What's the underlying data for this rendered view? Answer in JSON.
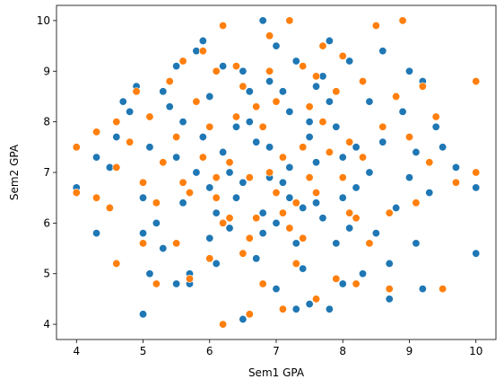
{
  "chart_data": {
    "type": "scatter",
    "xlabel": "Sem1 GPA",
    "ylabel": "Sem2 GPA",
    "xlim": [
      3.7,
      10.3
    ],
    "ylim": [
      3.7,
      10.3
    ],
    "xticks": [
      "4",
      "5",
      "6",
      "7",
      "8",
      "9",
      "10"
    ],
    "yticks": [
      "4",
      "5",
      "6",
      "7",
      "8",
      "9",
      "10"
    ],
    "grid": false,
    "legend": "none",
    "series": [
      {
        "color": "#1f77b4",
        "points": [
          [
            4.0,
            6.6
          ],
          [
            4.0,
            6.7
          ],
          [
            4.3,
            7.3
          ],
          [
            4.3,
            5.8
          ],
          [
            4.5,
            7.1
          ],
          [
            4.6,
            7.7
          ],
          [
            4.7,
            8.4
          ],
          [
            4.8,
            8.2
          ],
          [
            4.9,
            8.7
          ],
          [
            5.0,
            4.2
          ],
          [
            5.0,
            5.8
          ],
          [
            5.0,
            6.5
          ],
          [
            5.1,
            7.5
          ],
          [
            5.1,
            5.0
          ],
          [
            5.2,
            6.0
          ],
          [
            5.3,
            5.5
          ],
          [
            5.3,
            8.6
          ],
          [
            5.4,
            8.3
          ],
          [
            5.5,
            4.8
          ],
          [
            5.5,
            9.1
          ],
          [
            5.6,
            8.0
          ],
          [
            5.7,
            5.0
          ],
          [
            5.7,
            4.8
          ],
          [
            5.8,
            9.4
          ],
          [
            5.9,
            9.6
          ],
          [
            6.0,
            8.5
          ],
          [
            6.0,
            5.7
          ],
          [
            6.1,
            5.2
          ],
          [
            6.2,
            9.1
          ],
          [
            6.3,
            7.0
          ],
          [
            6.4,
            6.5
          ],
          [
            6.5,
            4.1
          ],
          [
            6.5,
            9.0
          ],
          [
            6.6,
            8.0
          ],
          [
            6.7,
            5.3
          ],
          [
            6.8,
            10.0
          ],
          [
            6.8,
            6.2
          ],
          [
            6.9,
            7.5
          ],
          [
            7.0,
            4.7
          ],
          [
            7.0,
            9.5
          ],
          [
            7.1,
            6.8
          ],
          [
            7.2,
            8.2
          ],
          [
            7.3,
            4.3
          ],
          [
            7.3,
            9.2
          ],
          [
            7.4,
            5.1
          ],
          [
            7.5,
            7.7
          ],
          [
            7.5,
            4.4
          ],
          [
            7.6,
            6.4
          ],
          [
            7.7,
            8.9
          ],
          [
            7.8,
            4.3
          ],
          [
            7.8,
            9.6
          ],
          [
            7.9,
            5.6
          ],
          [
            8.0,
            7.3
          ],
          [
            8.0,
            4.8
          ],
          [
            8.1,
            9.2
          ],
          [
            8.2,
            6.7
          ],
          [
            8.3,
            5.0
          ],
          [
            8.4,
            8.4
          ],
          [
            8.5,
            5.8
          ],
          [
            8.6,
            9.4
          ],
          [
            8.6,
            7.6
          ],
          [
            8.7,
            5.2
          ],
          [
            8.7,
            4.5
          ],
          [
            8.8,
            6.3
          ],
          [
            8.9,
            8.2
          ],
          [
            9.0,
            6.9
          ],
          [
            9.0,
            9.0
          ],
          [
            9.1,
            5.6
          ],
          [
            9.1,
            7.4
          ],
          [
            9.2,
            4.7
          ],
          [
            9.2,
            8.8
          ],
          [
            9.3,
            6.6
          ],
          [
            9.4,
            7.9
          ],
          [
            9.5,
            7.5
          ],
          [
            9.7,
            7.1
          ],
          [
            10.0,
            6.7
          ],
          [
            10.0,
            5.4
          ],
          [
            6.9,
            6.9
          ],
          [
            7.2,
            7.1
          ],
          [
            6.5,
            6.8
          ],
          [
            7.6,
            7.2
          ],
          [
            6.7,
            7.6
          ],
          [
            7.4,
            6.3
          ],
          [
            6.2,
            7.4
          ],
          [
            7.9,
            7.9
          ],
          [
            6.8,
            5.8
          ],
          [
            7.1,
            8.6
          ],
          [
            6.4,
            7.9
          ],
          [
            7.7,
            6.1
          ],
          [
            6.1,
            6.2
          ],
          [
            8.2,
            7.5
          ],
          [
            5.8,
            7.0
          ],
          [
            7.0,
            6.0
          ],
          [
            6.6,
            8.6
          ],
          [
            7.5,
            8.0
          ],
          [
            8.0,
            6.5
          ],
          [
            5.9,
            7.7
          ],
          [
            6.3,
            5.9
          ],
          [
            7.3,
            5.6
          ],
          [
            8.4,
            7.0
          ],
          [
            5.6,
            6.4
          ],
          [
            7.8,
            8.4
          ],
          [
            6.9,
            8.8
          ],
          [
            6.0,
            6.7
          ],
          [
            7.2,
            6.5
          ],
          [
            8.1,
            5.9
          ],
          [
            5.5,
            7.3
          ],
          [
            7.6,
            8.7
          ]
        ]
      },
      {
        "color": "#ff7f0e",
        "points": [
          [
            4.0,
            7.5
          ],
          [
            4.0,
            6.6
          ],
          [
            4.3,
            7.8
          ],
          [
            4.3,
            6.5
          ],
          [
            4.5,
            6.3
          ],
          [
            4.6,
            8.0
          ],
          [
            4.6,
            7.1
          ],
          [
            4.6,
            5.2
          ],
          [
            4.8,
            7.6
          ],
          [
            4.9,
            8.6
          ],
          [
            5.0,
            6.8
          ],
          [
            5.0,
            5.6
          ],
          [
            5.1,
            8.1
          ],
          [
            5.2,
            6.4
          ],
          [
            5.2,
            4.8
          ],
          [
            5.3,
            7.2
          ],
          [
            5.4,
            8.8
          ],
          [
            5.5,
            5.6
          ],
          [
            5.6,
            9.2
          ],
          [
            5.6,
            6.8
          ],
          [
            5.7,
            4.9
          ],
          [
            5.8,
            8.4
          ],
          [
            5.9,
            9.4
          ],
          [
            6.0,
            5.3
          ],
          [
            6.1,
            9.0
          ],
          [
            6.2,
            9.9
          ],
          [
            6.2,
            4.0
          ],
          [
            6.3,
            6.1
          ],
          [
            6.4,
            9.1
          ],
          [
            6.5,
            5.4
          ],
          [
            6.6,
            4.2
          ],
          [
            6.7,
            8.3
          ],
          [
            6.8,
            4.8
          ],
          [
            6.9,
            9.7
          ],
          [
            7.0,
            6.6
          ],
          [
            7.1,
            4.3
          ],
          [
            7.2,
            10.0
          ],
          [
            7.3,
            5.2
          ],
          [
            7.4,
            9.1
          ],
          [
            7.5,
            6.9
          ],
          [
            7.6,
            4.5
          ],
          [
            7.7,
            9.5
          ],
          [
            7.8,
            7.4
          ],
          [
            7.9,
            4.9
          ],
          [
            8.0,
            9.3
          ],
          [
            8.1,
            6.2
          ],
          [
            8.2,
            4.8
          ],
          [
            8.3,
            8.8
          ],
          [
            8.4,
            5.6
          ],
          [
            8.5,
            9.9
          ],
          [
            8.6,
            7.9
          ],
          [
            8.7,
            6.2
          ],
          [
            8.7,
            4.7
          ],
          [
            8.8,
            8.5
          ],
          [
            8.9,
            10.0
          ],
          [
            9.0,
            7.7
          ],
          [
            9.1,
            6.4
          ],
          [
            9.2,
            8.7
          ],
          [
            9.3,
            7.2
          ],
          [
            9.4,
            8.1
          ],
          [
            9.5,
            4.7
          ],
          [
            9.7,
            6.8
          ],
          [
            10.0,
            8.8
          ],
          [
            10.0,
            7.0
          ],
          [
            6.9,
            7.0
          ],
          [
            7.1,
            7.3
          ],
          [
            6.6,
            6.9
          ],
          [
            7.4,
            7.5
          ],
          [
            6.8,
            7.9
          ],
          [
            7.3,
            6.4
          ],
          [
            6.3,
            7.2
          ],
          [
            7.7,
            8.0
          ],
          [
            6.7,
            6.1
          ],
          [
            7.0,
            8.4
          ],
          [
            6.4,
            8.1
          ],
          [
            7.6,
            6.6
          ],
          [
            6.1,
            6.5
          ],
          [
            8.1,
            7.6
          ],
          [
            5.9,
            7.3
          ],
          [
            7.2,
            5.9
          ],
          [
            6.5,
            8.7
          ],
          [
            7.5,
            8.3
          ],
          [
            8.0,
            6.9
          ],
          [
            6.0,
            7.9
          ],
          [
            6.2,
            6.0
          ],
          [
            7.4,
            5.7
          ],
          [
            8.3,
            7.3
          ],
          [
            5.7,
            6.6
          ],
          [
            7.9,
            8.6
          ],
          [
            6.9,
            9.0
          ],
          [
            6.1,
            6.9
          ],
          [
            7.1,
            6.2
          ],
          [
            8.2,
            6.1
          ],
          [
            5.5,
            7.7
          ],
          [
            7.6,
            8.9
          ],
          [
            6.6,
            5.7
          ]
        ]
      }
    ]
  }
}
